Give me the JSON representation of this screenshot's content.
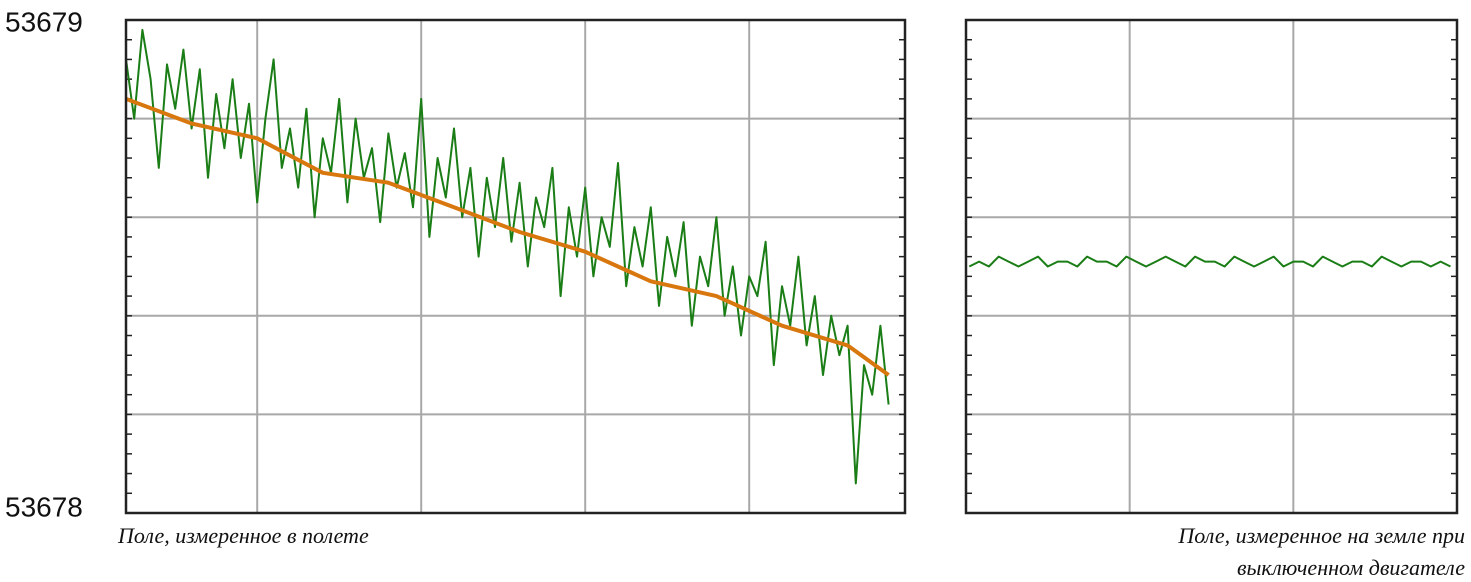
{
  "chart_data": [
    {
      "type": "line",
      "ylim": [
        53678,
        53679
      ],
      "yticks": [
        53678,
        53679
      ],
      "ygrid": [
        53678.2,
        53678.4,
        53678.6,
        53678.8
      ],
      "xlim": [
        0,
        475
      ],
      "xgrid": [
        80,
        180,
        280,
        380
      ],
      "grid": true,
      "xlabel_lines": [
        "Поле, измеренное в полете"
      ],
      "series": [
        {
          "color": "#1a7d16",
          "x": [
            0,
            5,
            10,
            15,
            20,
            25,
            30,
            35,
            40,
            45,
            50,
            55,
            60,
            65,
            70,
            75,
            80,
            85,
            90,
            95,
            100,
            105,
            110,
            115,
            120,
            125,
            130,
            135,
            140,
            145,
            150,
            155,
            160,
            165,
            170,
            175,
            180,
            185,
            190,
            195,
            200,
            205,
            210,
            215,
            220,
            225,
            230,
            235,
            240,
            245,
            250,
            255,
            260,
            265,
            270,
            275,
            280,
            285,
            290,
            295,
            300,
            305,
            310,
            315,
            320,
            325,
            330,
            335,
            340,
            345,
            350,
            355,
            360,
            365,
            370,
            375,
            380,
            385,
            390,
            395,
            400,
            405,
            410,
            415,
            420,
            425,
            430,
            435,
            440,
            445,
            450,
            455,
            460,
            465
          ],
          "values": [
            53678.92,
            53678.8,
            53678.98,
            53678.88,
            53678.7,
            53678.91,
            53678.82,
            53678.94,
            53678.78,
            53678.9,
            53678.68,
            53678.85,
            53678.74,
            53678.88,
            53678.72,
            53678.83,
            53678.63,
            53678.8,
            53678.92,
            53678.7,
            53678.78,
            53678.66,
            53678.82,
            53678.6,
            53678.76,
            53678.69,
            53678.84,
            53678.63,
            53678.8,
            53678.68,
            53678.74,
            53678.59,
            53678.77,
            53678.66,
            53678.73,
            53678.62,
            53678.84,
            53678.56,
            53678.72,
            53678.64,
            53678.78,
            53678.6,
            53678.7,
            53678.52,
            53678.68,
            53678.58,
            53678.72,
            53678.55,
            53678.67,
            53678.5,
            53678.64,
            53678.58,
            53678.7,
            53678.44,
            53678.62,
            53678.52,
            53678.66,
            53678.48,
            53678.6,
            53678.54,
            53678.71,
            53678.46,
            53678.58,
            53678.5,
            53678.62,
            53678.42,
            53678.56,
            53678.48,
            53678.59,
            53678.38,
            53678.52,
            53678.46,
            53678.6,
            53678.4,
            53678.5,
            53678.36,
            53678.48,
            53678.44,
            53678.55,
            53678.3,
            53678.46,
            53678.38,
            53678.52,
            53678.34,
            53678.44,
            53678.28,
            53678.4,
            53678.32,
            53678.38,
            53678.06,
            53678.3,
            53678.24,
            53678.38,
            53678.22
          ]
        },
        {
          "color": "#d9770f",
          "x": [
            0,
            40,
            80,
            120,
            160,
            200,
            240,
            280,
            320,
            360,
            400,
            440,
            465
          ],
          "values": [
            53678.84,
            53678.79,
            53678.76,
            53678.69,
            53678.67,
            53678.62,
            53678.57,
            53678.53,
            53678.47,
            53678.44,
            53678.38,
            53678.34,
            53678.28
          ]
        }
      ]
    },
    {
      "type": "line",
      "ylim": [
        53678,
        53679
      ],
      "ygrid": [
        53678.2,
        53678.4,
        53678.6,
        53678.8
      ],
      "xlim": [
        0,
        300
      ],
      "xgrid": [
        100,
        200
      ],
      "grid": true,
      "xlabel_lines": [
        "Поле, измеренное  на земле  при",
        "выключенном двигателе"
      ],
      "series": [
        {
          "color": "#1a7d16",
          "x": [
            2,
            8,
            14,
            20,
            26,
            32,
            38,
            44,
            50,
            56,
            62,
            68,
            74,
            80,
            86,
            92,
            98,
            104,
            110,
            116,
            122,
            128,
            134,
            140,
            146,
            152,
            158,
            164,
            170,
            176,
            182,
            188,
            194,
            200,
            206,
            212,
            218,
            224,
            230,
            236,
            242,
            248,
            254,
            260,
            266,
            272,
            278,
            284,
            290,
            296
          ],
          "values": [
            53678.5,
            53678.51,
            53678.5,
            53678.52,
            53678.51,
            53678.5,
            53678.51,
            53678.52,
            53678.5,
            53678.51,
            53678.51,
            53678.5,
            53678.52,
            53678.51,
            53678.51,
            53678.5,
            53678.52,
            53678.51,
            53678.5,
            53678.51,
            53678.52,
            53678.51,
            53678.5,
            53678.52,
            53678.51,
            53678.51,
            53678.5,
            53678.52,
            53678.51,
            53678.5,
            53678.51,
            53678.52,
            53678.5,
            53678.51,
            53678.51,
            53678.5,
            53678.52,
            53678.51,
            53678.5,
            53678.51,
            53678.51,
            53678.5,
            53678.52,
            53678.51,
            53678.5,
            53678.51,
            53678.51,
            53678.5,
            53678.51,
            53678.5
          ]
        }
      ]
    }
  ]
}
